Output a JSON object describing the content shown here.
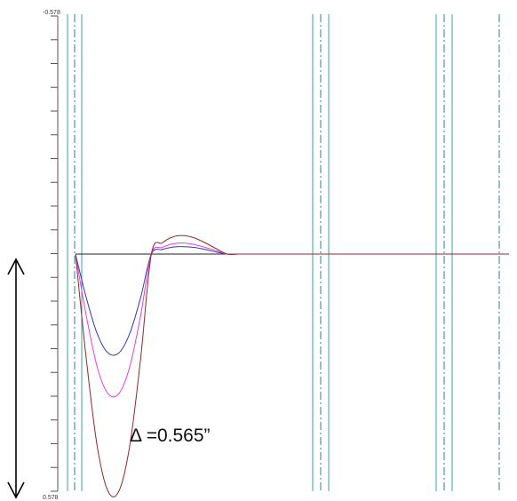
{
  "chart_data": {
    "type": "line",
    "title": "",
    "xlabel": "",
    "ylabel": "",
    "ylim": [
      -0.578,
      0.578
    ],
    "y_axis_inverted": true,
    "y_tick_labels": [
      "-0.578",
      "0.578"
    ],
    "y_minor_tick_count": 20,
    "grid": false,
    "legend": "none",
    "annotation": "Δ =0.565”",
    "x": [
      0,
      0.5,
      1.0,
      1.5,
      2.0,
      2.5,
      3.0,
      3.5,
      4.0,
      4.5,
      5.0,
      5.5,
      6.0,
      6.5,
      7.0,
      7.5,
      8.0,
      8.5,
      9.0,
      9.5,
      10.0,
      10.5,
      11.0,
      11.5,
      12.0,
      12.5,
      13.0,
      13.5,
      14.0,
      14.5,
      15.0,
      15.5,
      16.0,
      16.5,
      17.0,
      17.5,
      18.0,
      18.5,
      19.0,
      19.5,
      20.0
    ],
    "series": [
      {
        "color": "#3a3aa8",
        "values": [
          0,
          0.107,
          0.194,
          0.241,
          0.241,
          0.194,
          0.107,
          0,
          -0.011,
          -0.017,
          -0.018,
          -0.016,
          -0.011,
          -0.005,
          0,
          0,
          0,
          0,
          0,
          0,
          0,
          0,
          0,
          0,
          0,
          0,
          0,
          0,
          0,
          0,
          0,
          0,
          0,
          0,
          0,
          0,
          0,
          0,
          0,
          0,
          0
        ]
      },
      {
        "color": "#e23fe2",
        "values": [
          0,
          0.151,
          0.275,
          0.34,
          0.34,
          0.275,
          0.151,
          0,
          -0.016,
          -0.025,
          -0.027,
          -0.023,
          -0.016,
          -0.008,
          0,
          0,
          0,
          0,
          0,
          0,
          0,
          0,
          0,
          0,
          0,
          0,
          0,
          0,
          0,
          0,
          0,
          0,
          0,
          0,
          0,
          0,
          0,
          0,
          0,
          0,
          0
        ]
      },
      {
        "color": "#8b2a2a",
        "values": [
          0,
          0.257,
          0.468,
          0.578,
          0.578,
          0.468,
          0.257,
          0,
          -0.027,
          -0.042,
          -0.045,
          -0.039,
          -0.027,
          -0.013,
          0,
          0,
          0,
          0,
          0,
          0,
          0,
          0,
          0,
          0,
          0,
          0,
          0,
          0,
          0,
          0,
          0,
          0,
          0,
          0,
          0,
          0,
          0,
          0,
          0,
          0,
          0
        ]
      }
    ],
    "support_line_colors": {
      "solid": "#3aa3a3",
      "centerline": "#2f8080"
    },
    "baseline_color": "#222222"
  }
}
